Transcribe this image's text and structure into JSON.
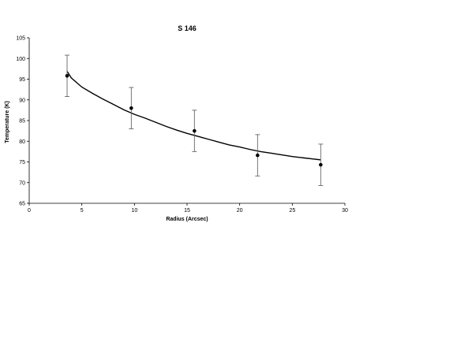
{
  "chart_data": {
    "type": "scatter",
    "title": "S 146",
    "xlabel": "Radius (Arcsec)",
    "ylabel": "Temperature (K)",
    "xlim": [
      0,
      30
    ],
    "ylim": [
      65,
      105
    ],
    "x_ticks": [
      0,
      5,
      10,
      15,
      20,
      25,
      30
    ],
    "y_ticks": [
      65,
      70,
      75,
      80,
      85,
      90,
      95,
      100,
      105
    ],
    "grid": false,
    "legend": "none",
    "series": [
      {
        "type": "scatter",
        "x": [
          3.6,
          9.7,
          15.7,
          21.7,
          27.7
        ],
        "y": [
          95.8,
          88.0,
          82.5,
          76.6,
          74.3
        ],
        "error": [
          5,
          5,
          5,
          5,
          5
        ]
      },
      {
        "type": "line",
        "x": [
          3.6,
          4,
          5,
          6,
          7,
          8,
          9,
          10,
          11,
          12,
          13,
          14,
          15,
          16,
          17,
          18,
          19,
          20,
          21,
          22,
          23,
          24,
          25,
          26,
          27,
          27.7
        ],
        "y": [
          96.9,
          95.3,
          93.1,
          91.6,
          90.2,
          88.9,
          87.6,
          86.5,
          85.6,
          84.6,
          83.6,
          82.7,
          81.9,
          81.2,
          80.5,
          79.8,
          79.1,
          78.6,
          78.0,
          77.5,
          77.1,
          76.7,
          76.3,
          76.0,
          75.7,
          75.5
        ]
      }
    ]
  }
}
